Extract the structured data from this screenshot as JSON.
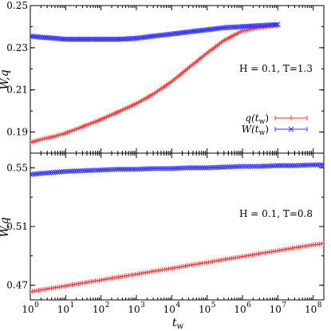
{
  "chart_data": [
    {
      "type": "line",
      "title": "",
      "xlabel": "t_w",
      "ylabel": "W,q",
      "xscale": "log",
      "xlim": [
        1,
        200000000
      ],
      "ylim": [
        0.18,
        0.25
      ],
      "yticks": [
        "0.19",
        "0.21",
        "0.23",
        "0.25"
      ],
      "yticks_values": [
        0.19,
        0.21,
        0.23,
        0.25
      ],
      "annotation": "H = 0.1, T=1.3",
      "legend_placement": "right-center",
      "grid": false,
      "series": [
        {
          "name": "q(t_w)",
          "color": "#ff3333",
          "marker": "plus",
          "x": [
            1,
            2,
            5,
            10,
            30,
            100,
            300,
            1000,
            3000,
            10000,
            30000,
            100000,
            300000,
            1000000,
            3000000,
            10000000
          ],
          "y": [
            0.185,
            0.1865,
            0.188,
            0.1895,
            0.1925,
            0.196,
            0.1995,
            0.2035,
            0.208,
            0.214,
            0.2205,
            0.2275,
            0.2335,
            0.238,
            0.2395,
            0.2405
          ]
        },
        {
          "name": "W(t_w)",
          "color": "#3333ff",
          "marker": "x",
          "x": [
            1,
            2,
            5,
            10,
            30,
            100,
            300,
            1000,
            3000,
            10000,
            30000,
            100000,
            300000,
            1000000,
            3000000,
            10000000
          ],
          "y": [
            0.2355,
            0.235,
            0.2345,
            0.234,
            0.234,
            0.234,
            0.234,
            0.2345,
            0.2355,
            0.2365,
            0.2375,
            0.2385,
            0.2395,
            0.24,
            0.2405,
            0.241
          ]
        }
      ]
    },
    {
      "type": "line",
      "title": "",
      "xlabel": "t_w",
      "ylabel": "W,q",
      "xscale": "log",
      "xlim": [
        1,
        200000000
      ],
      "ylim": [
        0.46,
        0.56
      ],
      "yticks": [
        "0.47",
        "0.51",
        "0.55"
      ],
      "yticks_values": [
        0.47,
        0.51,
        0.55
      ],
      "xticks": [
        "0",
        "1",
        "2",
        "3",
        "4",
        "5",
        "6",
        "7",
        "8"
      ],
      "xticks_values": [
        1,
        10,
        100,
        1000,
        10000,
        100000,
        1000000,
        10000000,
        100000000
      ],
      "xtick_base": "10",
      "annotation": "H = 0.1, T=0.8",
      "grid": false,
      "series": [
        {
          "name": "q(t_w)",
          "color": "#ff3333",
          "marker": "plus",
          "x": [
            1,
            3,
            10,
            30,
            100,
            300,
            1000,
            3000,
            10000,
            30000,
            100000,
            300000,
            1000000,
            3000000,
            10000000,
            30000000,
            100000000,
            200000000
          ],
          "y": [
            0.4655,
            0.4675,
            0.4695,
            0.4715,
            0.4735,
            0.4755,
            0.4775,
            0.4795,
            0.4815,
            0.4835,
            0.4855,
            0.4875,
            0.4895,
            0.4915,
            0.4935,
            0.4955,
            0.4975,
            0.4985
          ]
        },
        {
          "name": "W(t_w)",
          "color": "#3333ff",
          "marker": "x",
          "x": [
            1,
            3,
            10,
            30,
            100,
            300,
            1000,
            3000,
            10000,
            30000,
            100000,
            300000,
            1000000,
            3000000,
            10000000,
            30000000,
            100000000,
            200000000
          ],
          "y": [
            0.5455,
            0.5465,
            0.5475,
            0.548,
            0.5485,
            0.549,
            0.549,
            0.5495,
            0.5495,
            0.55,
            0.55,
            0.5505,
            0.551,
            0.551,
            0.5515,
            0.5515,
            0.552,
            0.552
          ]
        }
      ]
    }
  ],
  "legend": [
    {
      "name_main": "q(t",
      "name_sub": "w",
      "name_end": ")",
      "color": "#ff3333",
      "marker": "plus"
    },
    {
      "name_main": "W(t",
      "name_sub": "w",
      "name_end": ")",
      "color": "#3333ff",
      "marker": "x"
    }
  ]
}
